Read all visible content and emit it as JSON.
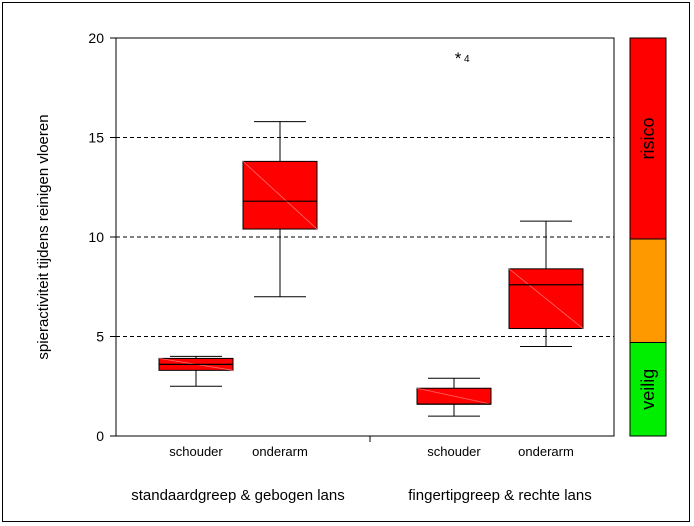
{
  "chart_data": {
    "type": "boxplot",
    "ylabel": "spieractiviteit tijdens reinigen vloeren",
    "ylim": [
      0,
      20
    ],
    "yticks": [
      0,
      5,
      10,
      15,
      20
    ],
    "gridlines": [
      5,
      10,
      15,
      20
    ],
    "grid": "dashed horizontal",
    "groups": [
      {
        "label": "standaardgreep & gebogen lans",
        "boxes": [
          {
            "category": "schouder",
            "whisker_low": 2.5,
            "q1": 3.3,
            "median": 3.6,
            "q3": 3.9,
            "whisker_high": 4.0
          },
          {
            "category": "onderarm",
            "whisker_low": 7.0,
            "q1": 10.4,
            "median": 11.8,
            "q3": 13.8,
            "whisker_high": 15.8
          }
        ]
      },
      {
        "label": "fingertipgreep & rechte lans",
        "boxes": [
          {
            "category": "schouder",
            "whisker_low": 1.0,
            "q1": 1.6,
            "median": 1.6,
            "q3": 2.4,
            "whisker_high": 2.9
          },
          {
            "category": "onderarm",
            "whisker_low": 4.5,
            "q1": 5.4,
            "median": 7.6,
            "q3": 8.4,
            "whisker_high": 10.8
          }
        ]
      }
    ],
    "outliers": [
      {
        "group": 1,
        "category": "schouder",
        "value": 19.0,
        "label": "4",
        "marker": "*"
      }
    ],
    "risk_scale": [
      {
        "label": "veilig",
        "from": 0,
        "to": 4.7,
        "color": "#00ee00"
      },
      {
        "label": "",
        "from": 4.7,
        "to": 9.9,
        "color": "#ff9900"
      },
      {
        "label": "risico",
        "from": 9.9,
        "to": 20,
        "color": "#ff0000"
      }
    ],
    "box_color": "#ff0000"
  }
}
